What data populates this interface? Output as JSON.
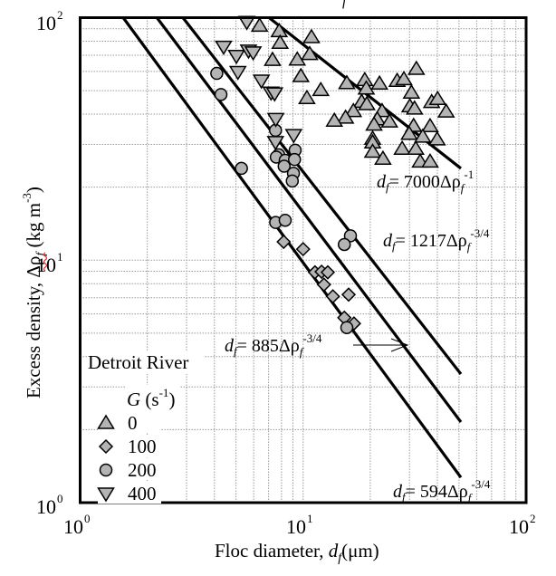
{
  "chart_data": {
    "type": "scatter",
    "title": "",
    "xlabel": {
      "prefix": "Floc diameter, ",
      "var": "d",
      "sub": "f",
      "suffix": "(μm)"
    },
    "ylabel": {
      "prefix": "Excess density, ",
      "var": "Δρ",
      "sub": "f",
      "suffix": " (kg m",
      "sup": "-3",
      "close": ")"
    },
    "xscale": "log",
    "yscale": "log",
    "xlim": [
      1,
      100
    ],
    "ylim": [
      1,
      100
    ],
    "grid": true,
    "xticks": [
      {
        "base": "10",
        "exp": "0",
        "value": 1
      },
      {
        "base": "10",
        "exp": "1",
        "value": 10
      },
      {
        "base": "10",
        "exp": "2",
        "value": 100
      }
    ],
    "yticks": [
      {
        "base": "10",
        "exp": "0",
        "value": 1
      },
      {
        "base": "10",
        "exp": "1",
        "value": 10
      },
      {
        "base": "10",
        "exp": "2",
        "value": 100
      }
    ],
    "legend": {
      "title": "Detroit River",
      "subtitle": {
        "var": "G",
        "unit": " (s",
        "sup": "-1",
        "close": ")"
      },
      "placement": "bottom-left",
      "entries": [
        {
          "label": "0",
          "marker": "triangle-up"
        },
        {
          "label": "100",
          "marker": "diamond"
        },
        {
          "label": "200",
          "marker": "circle"
        },
        {
          "label": "400",
          "marker": "triangle-down"
        }
      ]
    },
    "series": [
      {
        "name": "G = 0",
        "marker": "triangle-up",
        "points": [
          [
            6.38,
            92.7
          ],
          [
            7.81,
            88.0
          ],
          [
            7.88,
            78.8
          ],
          [
            10.9,
            83.1
          ],
          [
            7.29,
            67.0
          ],
          [
            9.41,
            67.2
          ],
          [
            10.7,
            70.8
          ],
          [
            9.77,
            57.4
          ],
          [
            12.0,
            50.3
          ],
          [
            10.4,
            46.6
          ],
          [
            15.7,
            53.7
          ],
          [
            18.9,
            55.3
          ],
          [
            19.2,
            51.0
          ],
          [
            22.0,
            53.5
          ],
          [
            26.4,
            54.9
          ],
          [
            28.3,
            55.8
          ],
          [
            32.2,
            61.5
          ],
          [
            30.6,
            49.1
          ],
          [
            18.3,
            45.0
          ],
          [
            19.3,
            44.0
          ],
          [
            16.8,
            41.2
          ],
          [
            15.5,
            38.7
          ],
          [
            13.8,
            37.6
          ],
          [
            22.6,
            41.2
          ],
          [
            21.5,
            38.1
          ],
          [
            20.8,
            36.2
          ],
          [
            24.4,
            37.3
          ],
          [
            30.1,
            43.1
          ],
          [
            31.6,
            42.2
          ],
          [
            37.7,
            44.9
          ],
          [
            40.1,
            46.2
          ],
          [
            43.8,
            41.0
          ],
          [
            31.3,
            35.8
          ],
          [
            37.1,
            35.7
          ],
          [
            29.9,
            33.2
          ],
          [
            34.4,
            32.3
          ],
          [
            39.9,
            31.5
          ],
          [
            20.5,
            31.7
          ],
          [
            20.5,
            30.6
          ],
          [
            20.5,
            28.0
          ],
          [
            27.8,
            28.8
          ],
          [
            32.0,
            28.8
          ],
          [
            22.8,
            26.2
          ],
          [
            33.5,
            25.5
          ],
          [
            37.1,
            25.5
          ]
        ]
      },
      {
        "name": "G = 100",
        "marker": "diamond",
        "points": [
          [
            8.18,
            11.9
          ],
          [
            10.0,
            11.1
          ],
          [
            11.3,
            8.91
          ],
          [
            12.1,
            8.96
          ],
          [
            12.9,
            8.91
          ],
          [
            12.4,
            7.93
          ],
          [
            13.6,
            7.09
          ],
          [
            16.0,
            7.21
          ],
          [
            15.3,
            5.79
          ],
          [
            16.9,
            5.48
          ]
        ]
      },
      {
        "name": "G = 200",
        "marker": "circle",
        "points": [
          [
            4.1,
            58.9
          ],
          [
            4.28,
            48.2
          ],
          [
            7.52,
            34.3
          ],
          [
            9.21,
            28.4
          ],
          [
            7.77,
            27.2
          ],
          [
            7.58,
            26.6
          ],
          [
            8.31,
            25.8
          ],
          [
            8.22,
            24.4
          ],
          [
            9.15,
            26.0
          ],
          [
            9.05,
            22.8
          ],
          [
            8.94,
            21.2
          ],
          [
            5.29,
            23.9
          ],
          [
            7.53,
            14.3
          ],
          [
            8.31,
            14.6
          ],
          [
            16.3,
            12.6
          ],
          [
            15.3,
            11.6
          ],
          [
            15.7,
            5.27
          ]
        ]
      },
      {
        "name": "G = 400",
        "marker": "triangle-down",
        "points": [
          [
            5.59,
            96.0
          ],
          [
            4.4,
            75.9
          ],
          [
            5.02,
            69.5
          ],
          [
            5.1,
            59.7
          ],
          [
            5.69,
            73.1
          ],
          [
            5.97,
            71.9
          ],
          [
            6.5,
            55.0
          ],
          [
            7.18,
            49.1
          ],
          [
            7.45,
            48.7
          ],
          [
            7.54,
            38.2
          ],
          [
            7.52,
            30.7
          ],
          [
            9.07,
            32.8
          ]
        ]
      }
    ],
    "fit_lines": [
      {
        "name": "line-7000",
        "from": [
          7.03,
          100
        ],
        "to": [
          51,
          23.9
        ],
        "label": {
          "var": "d",
          "sub": "f",
          "eq": "= 7000Δρ",
          "sub2": "f",
          "sup": "-1"
        }
      },
      {
        "name": "line-1217",
        "from": [
          2.89,
          100
        ],
        "to": [
          51,
          3.39
        ],
        "label": {
          "var": "d",
          "sub": "f",
          "eq": "= 1217Δρ",
          "sub2": "f",
          "sup": "-3/4"
        }
      },
      {
        "name": "line-885",
        "from": [
          2.21,
          100
        ],
        "to": [
          51,
          2.15
        ],
        "label": {
          "var": "d",
          "sub": "f",
          "eq": "= 885Δρ",
          "sub2": "f",
          "sup": "-3/4"
        },
        "arrow": true
      },
      {
        "name": "line-594",
        "from": [
          1.56,
          100
        ],
        "to": [
          51,
          1.27
        ],
        "label": {
          "var": "d",
          "sub": "f",
          "eq": "= 594Δρ",
          "sub2": "f",
          "sup": "-3/4"
        }
      }
    ],
    "colors": {
      "marker_fill": "#b4b4b4",
      "marker_stroke": "#000000",
      "grid": "#9a9a9a",
      "axis": "#000000",
      "spellcheck": "#e03030"
    }
  }
}
